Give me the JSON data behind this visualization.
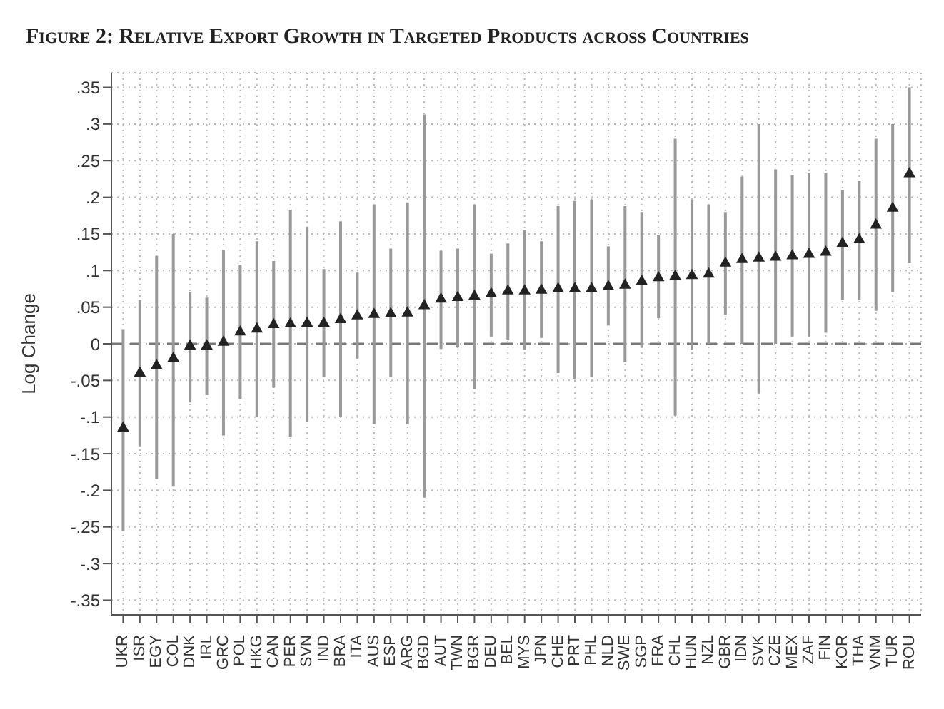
{
  "chart_data": {
    "type": "scatter",
    "title": "Figure 2: Relative Export Growth in Targeted Products across Countries",
    "ylabel": "Log Change",
    "categories": [
      "UKR",
      "ISR",
      "EGY",
      "COL",
      "DNK",
      "IRL",
      "GRC",
      "POL",
      "HKG",
      "CAN",
      "PER",
      "SVN",
      "IND",
      "BRA",
      "ITA",
      "AUS",
      "ESP",
      "ARG",
      "BGD",
      "AUT",
      "TWN",
      "BGR",
      "DEU",
      "BEL",
      "MYS",
      "JPN",
      "CHE",
      "PRT",
      "PHL",
      "NLD",
      "SWE",
      "SGP",
      "FRA",
      "CHL",
      "HUN",
      "NZL",
      "GBR",
      "IDN",
      "SVK",
      "CZE",
      "MEX",
      "ZAF",
      "FIN",
      "KOR",
      "THA",
      "VNM",
      "TUR",
      "ROU"
    ],
    "series": [
      {
        "color": "#222222",
        "values": [
          -0.115,
          -0.04,
          -0.03,
          -0.02,
          -0.003,
          -0.003,
          0.002,
          0.016,
          0.02,
          0.026,
          0.027,
          0.028,
          0.028,
          0.033,
          0.038,
          0.04,
          0.041,
          0.042,
          0.052,
          0.061,
          0.063,
          0.065,
          0.068,
          0.072,
          0.072,
          0.073,
          0.075,
          0.075,
          0.075,
          0.078,
          0.08,
          0.085,
          0.09,
          0.092,
          0.093,
          0.095,
          0.11,
          0.115,
          0.117,
          0.118,
          0.12,
          0.122,
          0.125,
          0.137,
          0.142,
          0.162,
          0.185,
          0.232
        ],
        "errors": [
          [
            -0.255,
            0.02
          ],
          [
            -0.14,
            0.06
          ],
          [
            -0.185,
            0.12
          ],
          [
            -0.195,
            0.15
          ],
          [
            -0.08,
            0.07
          ],
          [
            -0.07,
            0.063
          ],
          [
            -0.125,
            0.128
          ],
          [
            -0.075,
            0.108
          ],
          [
            -0.1,
            0.14
          ],
          [
            -0.06,
            0.113
          ],
          [
            -0.127,
            0.183
          ],
          [
            -0.107,
            0.16
          ],
          [
            -0.045,
            0.102
          ],
          [
            -0.1,
            0.167
          ],
          [
            -0.02,
            0.097
          ],
          [
            -0.11,
            0.19
          ],
          [
            -0.045,
            0.13
          ],
          [
            -0.11,
            0.193
          ],
          [
            -0.21,
            0.313
          ],
          [
            -0.007,
            0.127
          ],
          [
            -0.005,
            0.13
          ],
          [
            -0.062,
            0.19
          ],
          [
            0.01,
            0.123
          ],
          [
            0.005,
            0.137
          ],
          [
            -0.008,
            0.155
          ],
          [
            0.008,
            0.14
          ],
          [
            -0.04,
            0.188
          ],
          [
            -0.048,
            0.195
          ],
          [
            -0.045,
            0.197
          ],
          [
            0.025,
            0.133
          ],
          [
            -0.025,
            0.188
          ],
          [
            -0.005,
            0.18
          ],
          [
            0.035,
            0.148
          ],
          [
            -0.098,
            0.28
          ],
          [
            -0.008,
            0.196
          ],
          [
            0,
            0.19
          ],
          [
            0.04,
            0.18
          ],
          [
            0,
            0.228
          ],
          [
            -0.068,
            0.3
          ],
          [
            0,
            0.238
          ],
          [
            0.01,
            0.23
          ],
          [
            0.01,
            0.233
          ],
          [
            0.015,
            0.233
          ],
          [
            0.06,
            0.21
          ],
          [
            0.06,
            0.222
          ],
          [
            0.045,
            0.28
          ],
          [
            0.07,
            0.3
          ],
          [
            0.11,
            0.35
          ]
        ]
      }
    ],
    "ylim": [
      -0.37,
      0.37
    ],
    "yticks": [
      {
        "value": -0.35,
        "label": "-.35"
      },
      {
        "value": -0.3,
        "label": "-.3"
      },
      {
        "value": -0.25,
        "label": "-.25"
      },
      {
        "value": -0.2,
        "label": "-.2"
      },
      {
        "value": -0.15,
        "label": "-.15"
      },
      {
        "value": -0.1,
        "label": "-.1"
      },
      {
        "value": -0.05,
        "label": "-.05"
      },
      0,
      {
        "value": 0.05,
        "label": ".05"
      },
      {
        "value": 0.1,
        "label": ".1"
      },
      {
        "value": 0.15,
        "label": ".15"
      },
      {
        "value": 0.2,
        "label": ".2"
      },
      {
        "value": 0.25,
        "label": ".25"
      },
      {
        "value": 0.3,
        "label": ".3"
      },
      {
        "value": 0.35,
        "label": ".35"
      }
    ],
    "ref_lines": [
      {
        "axis": "y",
        "value": 0,
        "line_style": "dashed",
        "color": "#777777"
      }
    ],
    "grid": true,
    "marker": "triangle"
  }
}
